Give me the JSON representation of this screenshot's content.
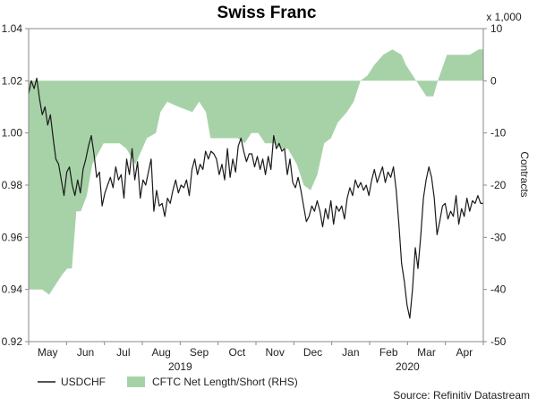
{
  "chart_data": {
    "type": "line",
    "title": "Swiss Franc",
    "left_axis": {
      "range": [
        0.92,
        1.04
      ],
      "ticks": [
        "0.92",
        "0.94",
        "0.96",
        "0.98",
        "1.00",
        "1.02",
        "1.04"
      ]
    },
    "right_axis": {
      "range": [
        -50,
        10
      ],
      "ticks": [
        "-50",
        "-40",
        "-30",
        "-20",
        "-10",
        "0",
        "10"
      ],
      "label": "Contracts",
      "multiplier_label": "x 1,000"
    },
    "x_axis": {
      "months": [
        "May",
        "Jun",
        "Jul",
        "Aug",
        "Sep",
        "Oct",
        "Nov",
        "Dec",
        "Jan",
        "Feb",
        "Mar",
        "Apr"
      ],
      "years": [
        "2019",
        "2020"
      ]
    },
    "legend": {
      "position": "bottom-left",
      "items": [
        {
          "label": "USDCHF",
          "style": "line",
          "color": "#1a1a1a"
        },
        {
          "label": "CFTC Net Length/Short (RHS)",
          "style": "area",
          "color": "#a7d2a8"
        }
      ]
    },
    "source": "Source: Refinitiv Datastream",
    "series": [
      {
        "name": "USDCHF",
        "axis": "left",
        "color": "#1a1a1a",
        "values": [
          1.015,
          1.02,
          1.017,
          1.021,
          1.013,
          1.007,
          1.01,
          1.003,
          1.007,
          0.998,
          0.99,
          0.988,
          0.982,
          0.976,
          0.985,
          0.987,
          0.98,
          0.976,
          0.982,
          0.977,
          0.986,
          0.99,
          0.995,
          0.999,
          0.992,
          0.983,
          0.985,
          0.972,
          0.977,
          0.98,
          0.983,
          0.979,
          0.987,
          0.982,
          0.984,
          0.975,
          0.99,
          0.984,
          0.994,
          0.982,
          0.989,
          0.975,
          0.982,
          0.98,
          0.985,
          0.99,
          0.97,
          0.978,
          0.972,
          0.973,
          0.968,
          0.975,
          0.973,
          0.978,
          0.982,
          0.977,
          0.98,
          0.979,
          0.982,
          0.976,
          0.986,
          0.99,
          0.984,
          0.988,
          0.986,
          0.993,
          0.99,
          0.993,
          0.992,
          0.99,
          0.984,
          0.988,
          0.982,
          0.994,
          0.983,
          0.99,
          0.985,
          0.995,
          0.998,
          0.993,
          0.989,
          0.992,
          0.992,
          0.987,
          0.991,
          0.986,
          0.99,
          0.984,
          0.991,
          0.986,
          0.999,
          0.994,
          0.996,
          0.993,
          0.994,
          0.984,
          0.99,
          0.981,
          0.979,
          0.983,
          0.978,
          0.972,
          0.966,
          0.968,
          0.972,
          0.97,
          0.974,
          0.97,
          0.964,
          0.971,
          0.967,
          0.974,
          0.965,
          0.972,
          0.97,
          0.972,
          0.967,
          0.975,
          0.979,
          0.976,
          0.982,
          0.979,
          0.981,
          0.978,
          0.98,
          0.976,
          0.982,
          0.986,
          0.981,
          0.984,
          0.987,
          0.981,
          0.985,
          0.983,
          0.987,
          0.978,
          0.965,
          0.95,
          0.943,
          0.934,
          0.929,
          0.94,
          0.956,
          0.948,
          0.96,
          0.975,
          0.982,
          0.987,
          0.983,
          0.975,
          0.961,
          0.966,
          0.972,
          0.973,
          0.967,
          0.97,
          0.968,
          0.976,
          0.965,
          0.971,
          0.968,
          0.975,
          0.97,
          0.974,
          0.973,
          0.976,
          0.973,
          0.973
        ]
      },
      {
        "name": "CFTC Net Length/Short (RHS)",
        "axis": "right",
        "color": "#a7d2a8",
        "x": [
          0,
          0.004,
          0.012,
          0.03,
          0.045,
          0.06,
          0.075,
          0.085,
          0.095,
          0.105,
          0.115,
          0.128,
          0.14,
          0.165,
          0.18,
          0.2,
          0.215,
          0.235,
          0.245,
          0.26,
          0.28,
          0.29,
          0.305,
          0.33,
          0.36,
          0.375,
          0.39,
          0.4,
          0.42,
          0.44,
          0.46,
          0.475,
          0.49,
          0.505,
          0.52,
          0.54,
          0.555,
          0.57,
          0.59,
          0.605,
          0.62,
          0.635,
          0.65,
          0.665,
          0.68,
          0.7,
          0.715,
          0.73,
          0.745,
          0.76,
          0.78,
          0.8,
          0.82,
          0.83,
          0.845,
          0.86,
          0.875,
          0.89,
          0.9,
          0.92,
          0.95,
          0.97,
          0.99,
          1.0
        ],
        "values": [
          -40,
          -40,
          -40,
          -40,
          -41,
          -39,
          -37,
          -36,
          -36,
          -25,
          -25,
          -22,
          -16,
          -12,
          -12,
          -12,
          -13,
          -16,
          -14,
          -11,
          -10,
          -6,
          -4,
          -5,
          -6,
          -4,
          -6,
          -11,
          -11,
          -11,
          -11,
          -12,
          -10,
          -10,
          -12,
          -12,
          -13,
          -13,
          -16,
          -20,
          -21,
          -18,
          -12,
          -11,
          -8,
          -6,
          -4,
          0,
          1,
          3,
          5,
          6,
          5,
          3,
          1,
          -1,
          -3,
          -3,
          0,
          5,
          5,
          5,
          6,
          6
        ]
      }
    ]
  }
}
